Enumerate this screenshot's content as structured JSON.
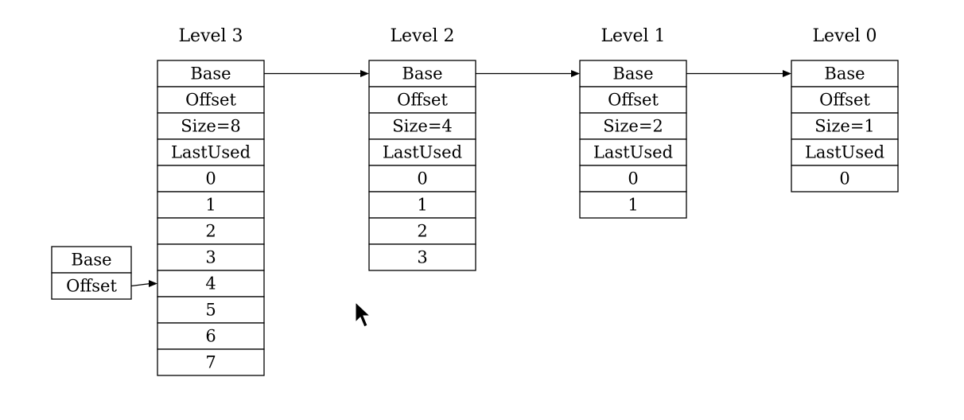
{
  "levels": [
    {
      "title": "Level 3",
      "cells": [
        "Base",
        "Offset",
        "Size=8",
        "LastUsed",
        "0",
        "1",
        "2",
        "3",
        "4",
        "5",
        "6",
        "7"
      ]
    },
    {
      "title": "Level 2",
      "cells": [
        "Base",
        "Offset",
        "Size=4",
        "LastUsed",
        "0",
        "1",
        "2",
        "3"
      ]
    },
    {
      "title": "Level 1",
      "cells": [
        "Base",
        "Offset",
        "Size=2",
        "LastUsed",
        "0",
        "1"
      ]
    },
    {
      "title": "Level 0",
      "cells": [
        "Base",
        "Offset",
        "Size=1",
        "LastUsed",
        "0"
      ]
    }
  ],
  "pointer": {
    "cells": [
      "Base",
      "Offset"
    ],
    "target_level": 0,
    "target_cell": 8
  },
  "links": [
    {
      "from_level": 0,
      "to_level": 1
    },
    {
      "from_level": 1,
      "to_level": 2
    },
    {
      "from_level": 2,
      "to_level": 3
    }
  ],
  "cursor": {
    "icon": "mouse-pointer-icon"
  }
}
